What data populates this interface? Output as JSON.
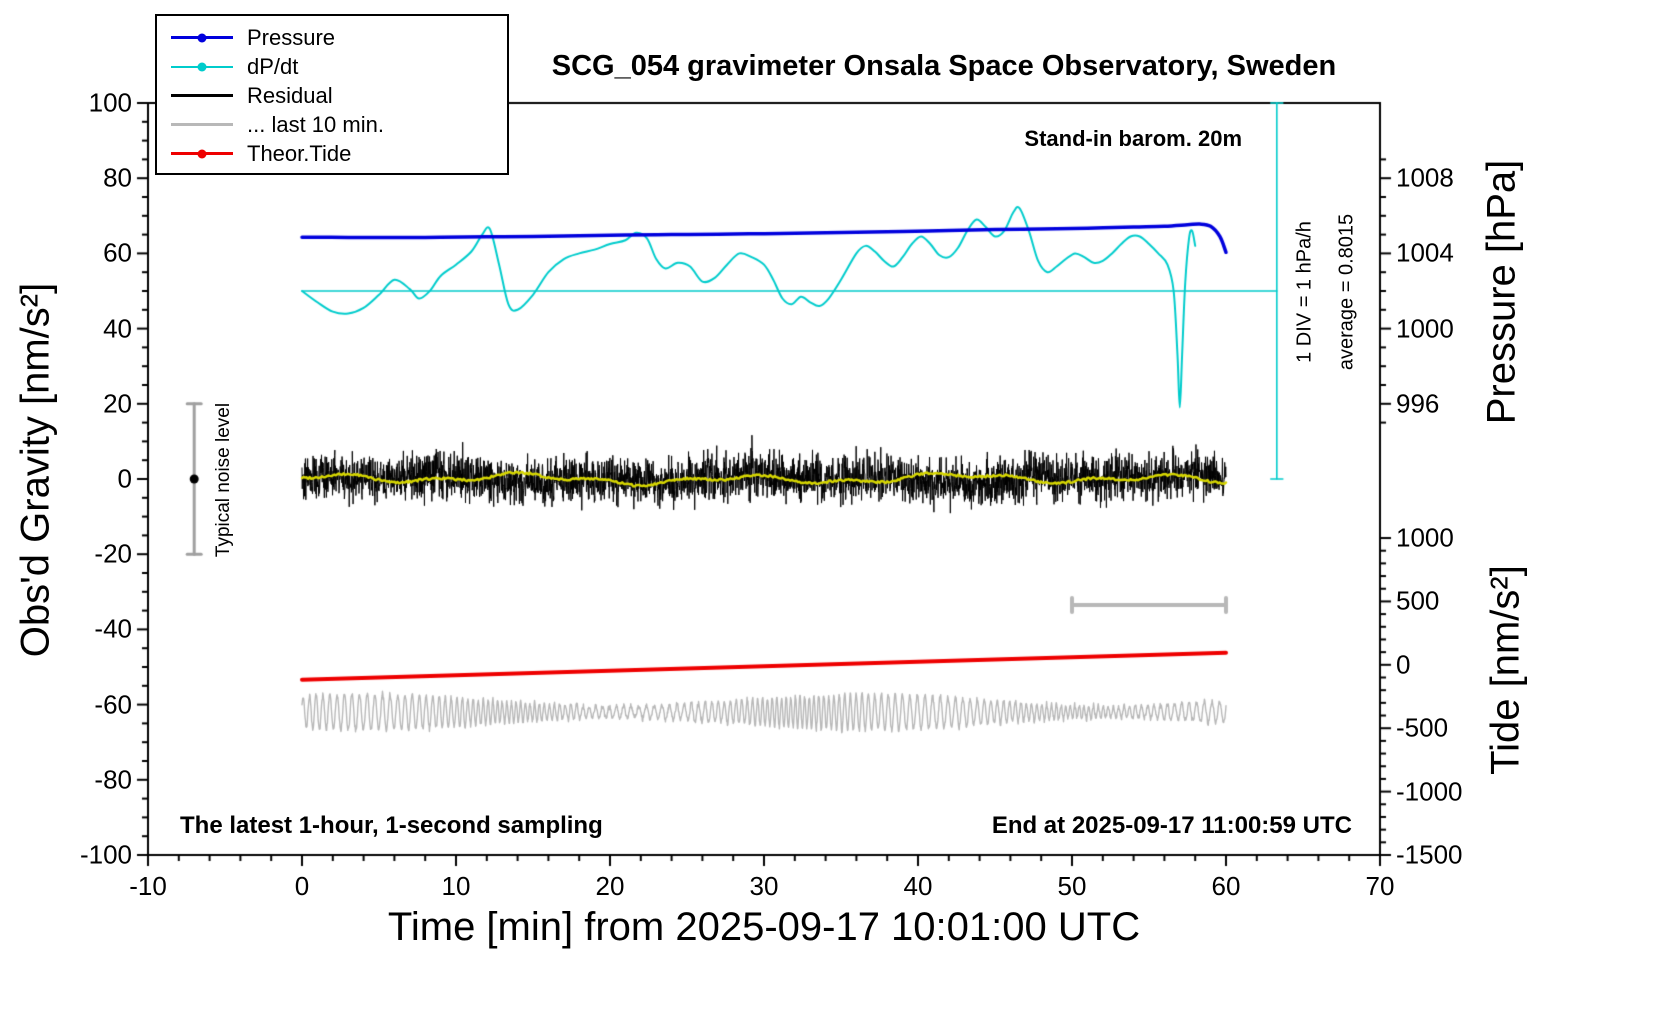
{
  "title": "SCG_054 gravimeter Onsala Space Observatory, Sweden",
  "legend": {
    "items": [
      {
        "label": "Pressure",
        "color": "#0000dd",
        "dot": true,
        "width": 3.5
      },
      {
        "label": "dP/dt",
        "color": "#00cccc",
        "dot": true,
        "width": 2
      },
      {
        "label": "Residual",
        "color": "#000000",
        "dot": false,
        "width": 2.5
      },
      {
        "label": "... last 10 min.",
        "color": "#b8b8b8",
        "dot": false,
        "width": 2.5
      },
      {
        "label": "Theor.Tide",
        "color": "#ee0000",
        "dot": true,
        "width": 3.5
      }
    ]
  },
  "annotations": {
    "standin": "Stand-in barom. 20m",
    "div_scale": "1 DIV = 1 hPa/h",
    "average": "average = 0.8015",
    "noise_level": "Typical noise level",
    "sampling": "The latest 1-hour, 1-second sampling",
    "end_time": "End at 2025-09-17 11:00:59 UTC"
  },
  "axes": {
    "left": {
      "label": "Obs'd Gravity [nm/s²]",
      "range": [
        -100,
        100
      ],
      "ticks": [
        -100,
        -80,
        -60,
        -40,
        -20,
        0,
        20,
        40,
        60,
        80,
        100
      ]
    },
    "bottom": {
      "label": "Time [min] from 2025-09-17 10:01:00 UTC",
      "range": [
        -10,
        70
      ],
      "ticks": [
        -10,
        0,
        10,
        20,
        30,
        40,
        50,
        60,
        70
      ]
    },
    "right_pressure": {
      "label": "Pressure [hPa]",
      "ticks": [
        996,
        1000,
        1004,
        1008
      ]
    },
    "right_tide": {
      "label": "Tide [nm/s²]",
      "ticks": [
        -1500,
        -1000,
        -500,
        0,
        500,
        1000
      ]
    }
  },
  "chart_data": {
    "type": "line",
    "x_range": [
      -10,
      70
    ],
    "y_range": [
      -100,
      100
    ],
    "x_units": "minutes from 2025-09-17 10:01:00 UTC",
    "sampling": "1-second, latest 1 hour",
    "pressure_axis": {
      "anchors": [
        {
          "pressure": 1008,
          "gravity": 80
        },
        {
          "pressure": 996,
          "gravity": 20
        }
      ]
    },
    "tide_axis": {
      "anchors": [
        {
          "tide": -1500,
          "gravity": -100
        },
        {
          "tide": 1000,
          "gravity": -15.7
        }
      ]
    },
    "series": {
      "pressure": {
        "name": "Pressure",
        "color": "#0000dd",
        "width": 3.5,
        "units": "hPa",
        "points": [
          [
            0,
            1004.86
          ],
          [
            3,
            1004.85
          ],
          [
            6,
            1004.84
          ],
          [
            9,
            1004.86
          ],
          [
            12,
            1004.88
          ],
          [
            15,
            1004.9
          ],
          [
            18,
            1004.94
          ],
          [
            21,
            1004.98
          ],
          [
            24,
            1005.0
          ],
          [
            27,
            1005.02
          ],
          [
            30,
            1005.05
          ],
          [
            33,
            1005.08
          ],
          [
            36,
            1005.12
          ],
          [
            39,
            1005.16
          ],
          [
            42,
            1005.22
          ],
          [
            45,
            1005.27
          ],
          [
            48,
            1005.3
          ],
          [
            51,
            1005.34
          ],
          [
            54,
            1005.4
          ],
          [
            56,
            1005.44
          ],
          [
            57.5,
            1005.52
          ],
          [
            58.3,
            1005.56
          ],
          [
            59,
            1005.44
          ],
          [
            59.6,
            1004.9
          ],
          [
            60,
            1004.06
          ]
        ]
      },
      "dpdt": {
        "name": "dP/dt",
        "color": "#00cccc",
        "width": 2,
        "units": "hPa/h",
        "zero_at_gravity": 50,
        "gravity_units_per_hPa_h": 20,
        "points": [
          [
            0,
            0
          ],
          [
            1,
            -0.15
          ],
          [
            2,
            -0.275
          ],
          [
            3,
            -0.3
          ],
          [
            4,
            -0.225
          ],
          [
            5,
            -0.05
          ],
          [
            6,
            0.15
          ],
          [
            7,
            0.025
          ],
          [
            7.6,
            -0.1
          ],
          [
            8.3,
            0
          ],
          [
            9,
            0.2
          ],
          [
            10,
            0.35
          ],
          [
            11,
            0.525
          ],
          [
            11.7,
            0.75
          ],
          [
            12.2,
            0.825
          ],
          [
            12.8,
            0.35
          ],
          [
            13.4,
            -0.175
          ],
          [
            14,
            -0.25
          ],
          [
            15,
            -0.05
          ],
          [
            16,
            0.25
          ],
          [
            17,
            0.425
          ],
          [
            18,
            0.5
          ],
          [
            19,
            0.55
          ],
          [
            20,
            0.625
          ],
          [
            21,
            0.675
          ],
          [
            21.7,
            0.775
          ],
          [
            22.4,
            0.7
          ],
          [
            23,
            0.425
          ],
          [
            23.6,
            0.3
          ],
          [
            24.4,
            0.375
          ],
          [
            25.2,
            0.325
          ],
          [
            26,
            0.125
          ],
          [
            26.8,
            0.175
          ],
          [
            27.6,
            0.35
          ],
          [
            28.4,
            0.5
          ],
          [
            29.2,
            0.45
          ],
          [
            30,
            0.35
          ],
          [
            30.6,
            0.15
          ],
          [
            31.2,
            -0.1
          ],
          [
            31.8,
            -0.175
          ],
          [
            32.4,
            -0.075
          ],
          [
            33,
            -0.15
          ],
          [
            33.6,
            -0.2
          ],
          [
            34.2,
            -0.1
          ],
          [
            35,
            0.15
          ],
          [
            36,
            0.5
          ],
          [
            36.6,
            0.6
          ],
          [
            37.2,
            0.525
          ],
          [
            37.8,
            0.4
          ],
          [
            38.4,
            0.325
          ],
          [
            39,
            0.45
          ],
          [
            39.6,
            0.625
          ],
          [
            40.2,
            0.725
          ],
          [
            40.8,
            0.625
          ],
          [
            41.4,
            0.475
          ],
          [
            42,
            0.45
          ],
          [
            42.6,
            0.575
          ],
          [
            43.2,
            0.8
          ],
          [
            43.8,
            0.95
          ],
          [
            44.4,
            0.85
          ],
          [
            45,
            0.725
          ],
          [
            45.6,
            0.8
          ],
          [
            46.2,
            1.05
          ],
          [
            46.6,
            1.1
          ],
          [
            47.2,
            0.8
          ],
          [
            47.8,
            0.4
          ],
          [
            48.4,
            0.25
          ],
          [
            49,
            0.325
          ],
          [
            49.6,
            0.425
          ],
          [
            50.2,
            0.5
          ],
          [
            50.8,
            0.45
          ],
          [
            51.4,
            0.375
          ],
          [
            52,
            0.4
          ],
          [
            52.6,
            0.5
          ],
          [
            53.2,
            0.625
          ],
          [
            53.8,
            0.725
          ],
          [
            54.4,
            0.725
          ],
          [
            55,
            0.625
          ],
          [
            55.6,
            0.5
          ],
          [
            56.2,
            0.35
          ],
          [
            56.6,
            0
          ],
          [
            56.85,
            -0.85
          ],
          [
            57,
            -1.55
          ],
          [
            57.15,
            -0.85
          ],
          [
            57.35,
            0.1
          ],
          [
            57.6,
            0.7
          ],
          [
            57.8,
            0.8
          ],
          [
            58,
            0.6
          ]
        ]
      },
      "residual": {
        "name": "Residual",
        "color": "#000000",
        "width": 1,
        "units": "nm/s²",
        "mean": 0,
        "typical_amplitude": 8,
        "max_spike": 13,
        "n": 3600,
        "x_range": [
          0,
          60
        ]
      },
      "residual_smoothed": {
        "name": "Residual (smoothed)",
        "color": "#d6d600",
        "width": 2.5,
        "mean": 0,
        "amplitude": 1.5,
        "x_range": [
          0,
          60
        ]
      },
      "last10min": {
        "name": "... last 10 min.",
        "color": "#b8b8b8",
        "width": 1.4,
        "units": "nm/s²",
        "mean": -62,
        "amplitude_range": [
          2,
          6.5
        ],
        "period_min": 0.42,
        "x_range": [
          0,
          60
        ]
      },
      "tide": {
        "name": "Theor.Tide",
        "color": "#ee0000",
        "width": 4,
        "units": "nm/s² (tide axis)",
        "points": [
          [
            0,
            -118
          ],
          [
            15,
            -64
          ],
          [
            30,
            -11
          ],
          [
            45,
            42
          ],
          [
            60,
            95
          ]
        ]
      }
    },
    "markers": {
      "dpdt_zero_line": {
        "x_from": 0,
        "x_to": 63.3,
        "y": 50,
        "color": "#00cccc"
      },
      "dpdt_scale_bar": {
        "x": 63.3,
        "y_from": 0,
        "y_to": 100,
        "color": "#00cccc",
        "meaning": "1 DIV = 1 hPa/h, average = 0.8015"
      },
      "noise_level_bar": {
        "x": -7,
        "y_center": 0,
        "half_height": 20,
        "color": "#a0a0a0"
      },
      "scale_bar": {
        "x_from": 50,
        "x_to": 60,
        "y": -33.5,
        "color": "#b8b8b8"
      }
    }
  }
}
